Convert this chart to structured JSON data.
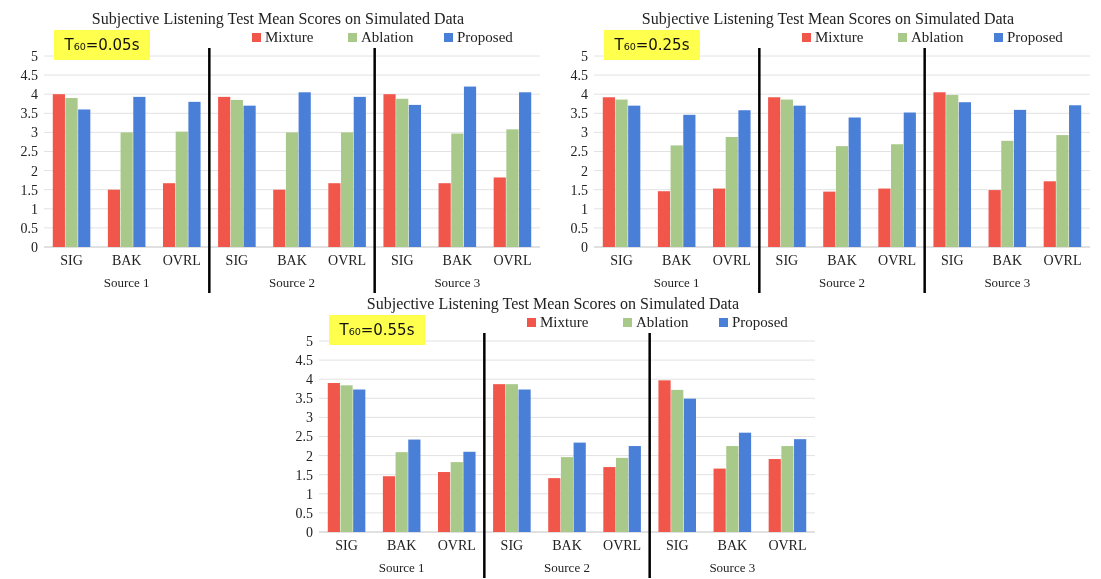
{
  "chart_data": [
    {
      "type": "bar",
      "title": "Subjective Listening Test Mean Scores on Simulated Data",
      "categories": [
        "SIG",
        "BAK",
        "OVRL",
        "SIG",
        "BAK",
        "OVRL",
        "SIG",
        "BAK",
        "OVRL"
      ],
      "series": [
        {
          "name": "Mixture",
          "color": "#f0564a",
          "values": [
            4.0,
            1.5,
            1.67,
            3.93,
            1.5,
            1.67,
            4.0,
            1.67,
            1.82
          ]
        },
        {
          "name": "Ablation",
          "color": "#a9c98a",
          "values": [
            3.9,
            3.0,
            3.02,
            3.85,
            3.0,
            3.0,
            3.88,
            2.97,
            3.08
          ]
        },
        {
          "name": "Proposed",
          "color": "#4a7fd8",
          "values": [
            3.6,
            3.93,
            3.8,
            3.7,
            4.05,
            3.93,
            3.72,
            4.2,
            4.05
          ]
        }
      ],
      "ylim": [
        0,
        5
      ],
      "yticks": [
        0,
        0.5,
        1,
        1.5,
        2,
        2.5,
        3,
        3.5,
        4,
        4.5,
        5
      ],
      "grid": "y",
      "legend": "top right",
      "annotations": [
        "T₆₀=0.05s",
        "Source 1",
        "Source 2",
        "Source 3"
      ]
    },
    {
      "type": "bar",
      "title": "Subjective Listening Test Mean Scores on Simulated Data",
      "categories": [
        "SIG",
        "BAK",
        "OVRL",
        "SIG",
        "BAK",
        "OVRL",
        "SIG",
        "BAK",
        "OVRL"
      ],
      "series": [
        {
          "name": "Mixture",
          "color": "#f0564a",
          "values": [
            3.92,
            1.46,
            1.53,
            3.92,
            1.45,
            1.53,
            4.05,
            1.49,
            1.72
          ]
        },
        {
          "name": "Ablation",
          "color": "#a9c98a",
          "values": [
            3.86,
            2.66,
            2.88,
            3.86,
            2.64,
            2.69,
            3.98,
            2.78,
            2.93
          ]
        },
        {
          "name": "Proposed",
          "color": "#4a7fd8",
          "values": [
            3.7,
            3.46,
            3.58,
            3.7,
            3.39,
            3.52,
            3.79,
            3.59,
            3.71
          ]
        }
      ],
      "ylim": [
        0,
        5
      ],
      "yticks": [
        0,
        0.5,
        1,
        1.5,
        2,
        2.5,
        3,
        3.5,
        4,
        4.5,
        5
      ],
      "grid": "y",
      "legend": "top right",
      "annotations": [
        "T₆₀=0.25s",
        "Source 1",
        "Source 2",
        "Source 3"
      ]
    },
    {
      "type": "bar",
      "title": "Subjective Listening Test Mean Scores on Simulated Data",
      "categories": [
        "SIG",
        "BAK",
        "OVRL",
        "SIG",
        "BAK",
        "OVRL",
        "SIG",
        "BAK",
        "OVRL"
      ],
      "series": [
        {
          "name": "Mixture",
          "color": "#f0564a",
          "values": [
            3.9,
            1.46,
            1.57,
            3.87,
            1.41,
            1.7,
            3.97,
            1.66,
            1.91
          ]
        },
        {
          "name": "Ablation",
          "color": "#a9c98a",
          "values": [
            3.84,
            2.09,
            1.83,
            3.87,
            1.96,
            1.94,
            3.72,
            2.25,
            2.25
          ]
        },
        {
          "name": "Proposed",
          "color": "#4a7fd8",
          "values": [
            3.73,
            2.42,
            2.1,
            3.73,
            2.34,
            2.25,
            3.49,
            2.6,
            2.43
          ]
        }
      ],
      "ylim": [
        0,
        5
      ],
      "yticks": [
        0,
        0.5,
        1,
        1.5,
        2,
        2.5,
        3,
        3.5,
        4,
        4.5,
        5
      ],
      "grid": "y",
      "legend": "top right",
      "annotations": [
        "T₆₀=0.55s",
        "Source 1",
        "Source 2",
        "Source 3"
      ]
    }
  ]
}
